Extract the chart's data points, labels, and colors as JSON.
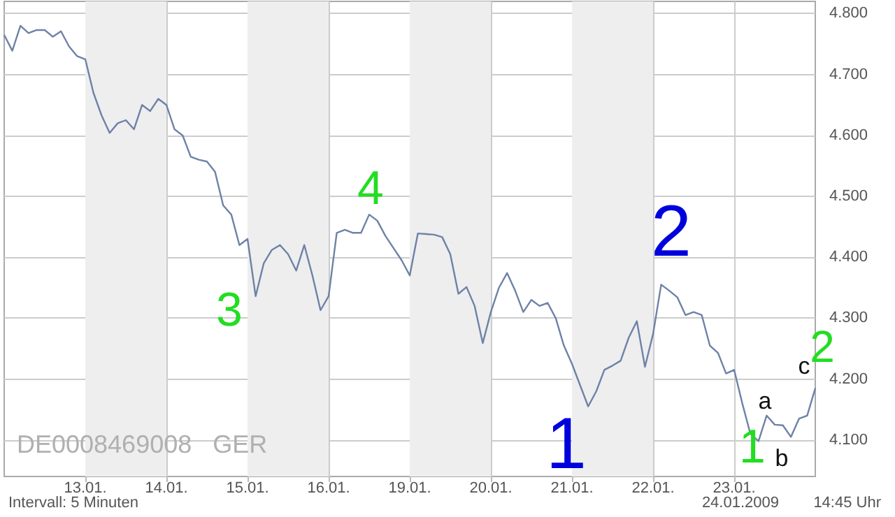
{
  "chart_data": {
    "type": "line",
    "categories": [
      null,
      null,
      null,
      null,
      null,
      null,
      null,
      null,
      null,
      null,
      "13.01.",
      null,
      null,
      null,
      null,
      null,
      null,
      null,
      null,
      null,
      "14.01.",
      null,
      null,
      null,
      null,
      null,
      null,
      null,
      null,
      null,
      "15.01.",
      null,
      null,
      null,
      null,
      null,
      null,
      null,
      null,
      null,
      "16.01.",
      null,
      null,
      null,
      null,
      null,
      null,
      null,
      null,
      null,
      "19.01.",
      null,
      null,
      null,
      null,
      null,
      null,
      null,
      null,
      null,
      "20.01.",
      null,
      null,
      null,
      null,
      null,
      null,
      null,
      null,
      null,
      "21.01.",
      null,
      null,
      null,
      null,
      null,
      null,
      null,
      null,
      null,
      "22.01.",
      null,
      null,
      null,
      null,
      null,
      null,
      null,
      null,
      null,
      "23.01.",
      null,
      null,
      null,
      null,
      null,
      null,
      null,
      null,
      null,
      null
    ],
    "series": [
      {
        "color": "#6e82a8",
        "values": [
          4765,
          4739,
          4780,
          4768,
          4773,
          4773,
          4762,
          4771,
          4746,
          4730,
          4725,
          4670,
          4633,
          4604,
          4620,
          4625,
          4610,
          4650,
          4640,
          4660,
          4650,
          4610,
          4600,
          4565,
          4560,
          4557,
          4540,
          4485,
          4470,
          4420,
          4430,
          4336,
          4390,
          4412,
          4420,
          4405,
          4378,
          4420,
          4370,
          4313,
          4336,
          4440,
          4445,
          4440,
          4440,
          4470,
          4460,
          4435,
          4415,
          4395,
          4370,
          4439,
          4438,
          4437,
          4433,
          4405,
          4340,
          4351,
          4320,
          4259,
          4310,
          4350,
          4374,
          4345,
          4310,
          4330,
          4320,
          4325,
          4300,
          4255,
          4225,
          4190,
          4155,
          4180,
          4215,
          4222,
          4230,
          4268,
          4295,
          4220,
          4274,
          4355,
          4345,
          4334,
          4305,
          4310,
          4305,
          4255,
          4243,
          4209,
          4215,
          4160,
          4110,
          4098,
          4140,
          4125,
          4124,
          4105,
          4135,
          4140,
          4185
        ]
      }
    ],
    "ylim": [
      4040,
      4820
    ],
    "yticks": [
      {
        "value": 4100,
        "label": "4.100"
      },
      {
        "value": 4200,
        "label": "4.200"
      },
      {
        "value": 4300,
        "label": "4.300"
      },
      {
        "value": 4400,
        "label": "4.400"
      },
      {
        "value": 4500,
        "label": "4.500"
      },
      {
        "value": 4600,
        "label": "4.600"
      },
      {
        "value": 4700,
        "label": "4.700"
      },
      {
        "value": 4800,
        "label": "4.800"
      }
    ],
    "bands": [
      {
        "axis": "x",
        "from": "13.01.",
        "to": "14.01.",
        "color": "#eeeeee"
      },
      {
        "axis": "x",
        "from": "15.01.",
        "to": "16.01.",
        "color": "#eeeeee"
      },
      {
        "axis": "x",
        "from": "19.01.",
        "to": "20.01.",
        "color": "#eeeeee"
      },
      {
        "axis": "x",
        "from": "21.01.",
        "to": "22.01.",
        "color": "#eeeeee"
      }
    ],
    "annotations": [
      "3",
      "4",
      "1",
      "2",
      "1",
      "a",
      "b",
      "c",
      "2",
      "DE0008469008   GER",
      "Intervall: 5 Minuten",
      "24.01.2009",
      "14:45 Uhr"
    ],
    "grid": true
  }
}
